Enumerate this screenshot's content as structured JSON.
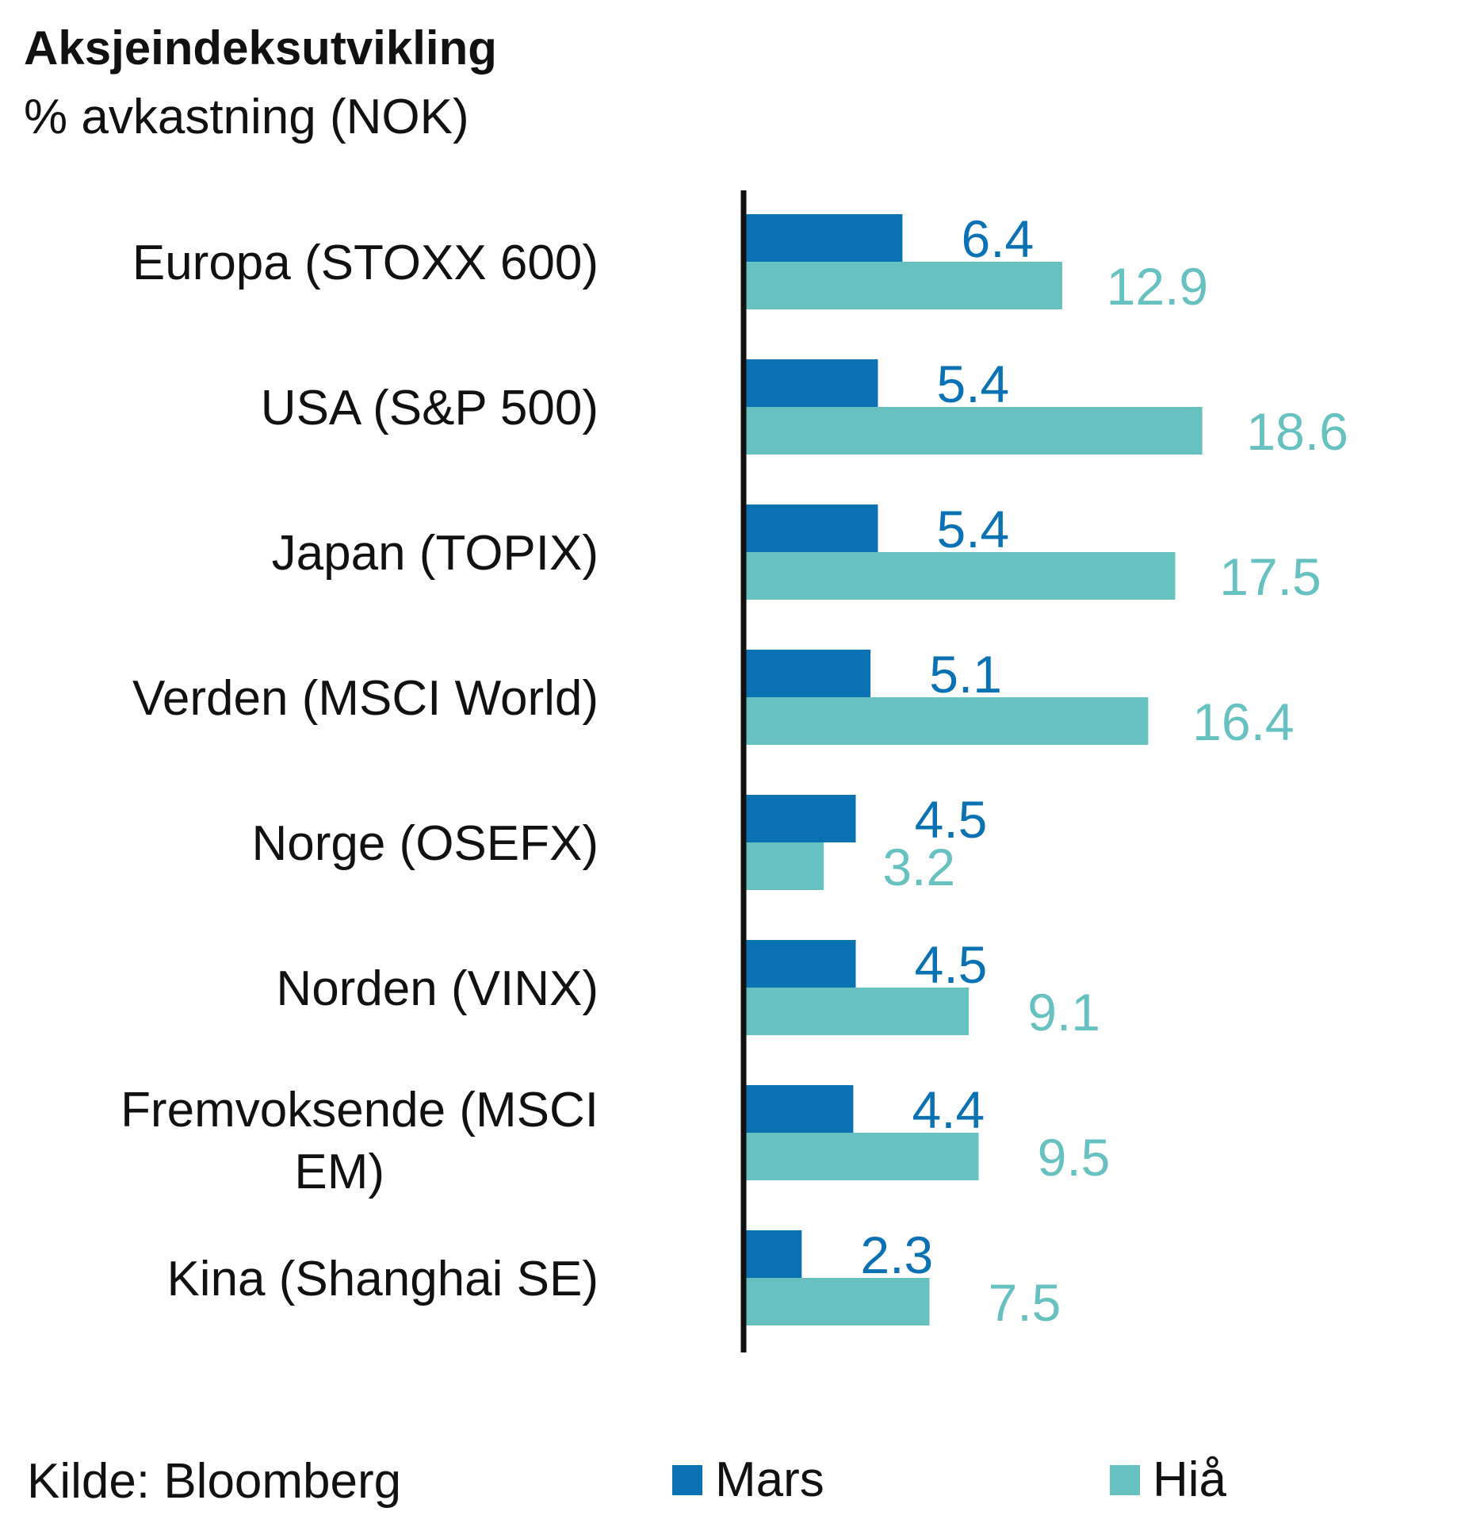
{
  "chart_data": {
    "type": "bar",
    "orientation": "horizontal",
    "title": "Aksjeindeksutvikling",
    "subtitle": "% avkastning (NOK)",
    "categories": [
      "Europa (STOXX 600)",
      "USA (S&P 500)",
      "Japan (TOPIX)",
      "Verden (MSCI World)",
      "Norge (OSEFX)",
      "Norden (VINX)",
      "Fremvoksende (MSCI EM)",
      "Kina (Shanghai SE)"
    ],
    "series": [
      {
        "name": "Mars",
        "color": "#0a72b3",
        "values": [
          6.4,
          5.4,
          5.4,
          5.1,
          4.5,
          4.5,
          4.4,
          2.3
        ]
      },
      {
        "name": "Hiå",
        "color": "#66c1c0",
        "values": [
          12.9,
          18.6,
          17.5,
          16.4,
          3.2,
          9.1,
          9.5,
          7.5
        ]
      }
    ],
    "xlim": [
      0,
      20
    ],
    "grid": false,
    "legend": "bottom",
    "source": "Kilde: Bloomberg"
  }
}
